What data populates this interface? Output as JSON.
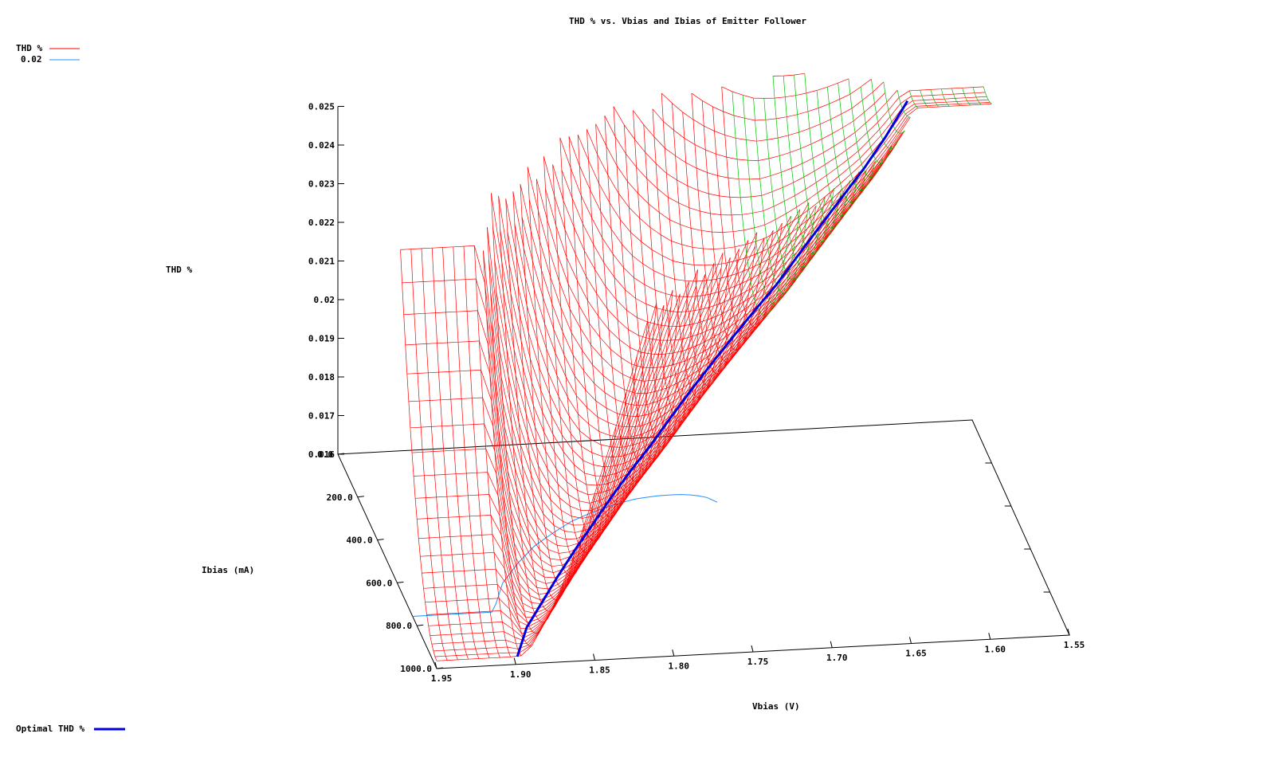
{
  "chart_data": {
    "type": "surface3d",
    "title": "THD % vs. Vbias and Ibias of Emitter Follower",
    "xlabel": "Vbias (V)",
    "ylabel": "Ibias (mA)",
    "zlabel": "THD %",
    "x_ticks": [
      "1.95",
      "1.90",
      "1.85",
      "1.80",
      "1.75",
      "1.70",
      "1.65",
      "1.60",
      "1.55"
    ],
    "y_ticks": [
      "0.0",
      "200.0",
      "400.0",
      "600.0",
      "800.0",
      "1000.0"
    ],
    "z_ticks": [
      "0.016",
      "0.017",
      "0.018",
      "0.019",
      "0.02",
      "0.021",
      "0.022",
      "0.023",
      "0.024",
      "0.025"
    ],
    "xlim": [
      1.55,
      1.95
    ],
    "ylim": [
      0,
      1000
    ],
    "zlim": [
      0.016,
      0.025
    ],
    "legend": [
      {
        "label": "THD %",
        "color": "#ff0000"
      },
      {
        "label": "0.02",
        "color": "#1f8fff"
      },
      {
        "label": "Optimal THD %",
        "color": "#0000e0"
      }
    ],
    "legend_placement": "top-left",
    "contour_level": 0.02,
    "optimal_curve": {
      "vbias": [
        1.899,
        1.885,
        1.87,
        1.855,
        1.84,
        1.825,
        1.81,
        1.795,
        1.78,
        1.765,
        1.75,
        1.735,
        1.72,
        1.705,
        1.69,
        1.675,
        1.66,
        1.645,
        1.63,
        1.615,
        1.6
      ],
      "ibias": [
        1000,
        870,
        780,
        700,
        635,
        575,
        525,
        480,
        440,
        405,
        372,
        343,
        316,
        291,
        268,
        246,
        225,
        205,
        186,
        168,
        150
      ],
      "thd": [
        0.0162,
        0.0162,
        0.0163,
        0.0165,
        0.0168,
        0.0171,
        0.0175,
        0.0179,
        0.0183,
        0.0188,
        0.0193,
        0.0198,
        0.0203,
        0.0208,
        0.0213,
        0.0219,
        0.0225,
        0.0231,
        0.0237,
        0.0244,
        0.0252
      ]
    }
  }
}
